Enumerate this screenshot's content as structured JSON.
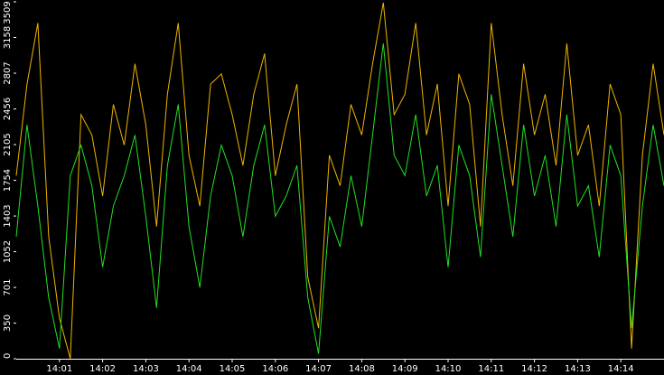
{
  "chart_data": {
    "type": "line",
    "x": [
      0,
      0.25,
      0.5,
      0.75,
      1,
      1.25,
      1.5,
      1.75,
      2,
      2.25,
      2.5,
      2.75,
      3,
      3.25,
      3.5,
      3.75,
      4,
      4.25,
      4.5,
      4.75,
      5,
      5.25,
      5.5,
      5.75,
      6,
      6.25,
      6.5,
      6.75,
      7,
      7.25,
      7.5,
      7.75,
      8,
      8.25,
      8.5,
      8.75,
      9,
      9.25,
      9.5,
      9.75,
      10,
      10.25,
      10.5,
      10.75,
      11,
      11.25,
      11.5,
      11.75,
      12,
      12.25,
      12.5,
      12.75,
      13,
      13.25,
      13.5,
      13.75,
      14,
      14.25,
      14.5,
      14.75,
      15
    ],
    "series": [
      {
        "color": "#f0b400",
        "values": [
          1800,
          2700,
          3300,
          1200,
          400,
          0,
          2400,
          2200,
          1600,
          2500,
          2100,
          2900,
          2300,
          1300,
          2600,
          3300,
          2000,
          1500,
          2700,
          2800,
          2400,
          1900,
          2600,
          3000,
          1800,
          2300,
          2700,
          800,
          300,
          2000,
          1700,
          2500,
          2200,
          2900,
          3500,
          2400,
          2600,
          3300,
          2200,
          2700,
          1500,
          2800,
          2500,
          1300,
          3300,
          2400,
          1700,
          2900,
          2200,
          2600,
          1900,
          3100,
          2000,
          2300,
          1500,
          2700,
          2400,
          100,
          2000,
          2900,
          2200
        ]
      },
      {
        "color": "#22e022",
        "values": [
          1200,
          2300,
          1500,
          600,
          100,
          1800,
          2100,
          1700,
          900,
          1500,
          1800,
          2200,
          1400,
          500,
          1900,
          2500,
          1300,
          700,
          1600,
          2100,
          1800,
          1200,
          1900,
          2300,
          1400,
          1600,
          1900,
          600,
          50,
          1400,
          1100,
          1800,
          1300,
          2200,
          3100,
          2000,
          1800,
          2400,
          1600,
          1900,
          900,
          2100,
          1800,
          1000,
          2600,
          1900,
          1200,
          2300,
          1600,
          2000,
          1300,
          2400,
          1500,
          1700,
          1000,
          2100,
          1800,
          300,
          1500,
          2300,
          1700
        ]
      }
    ],
    "xlim": [
      0,
      15
    ],
    "xticks": [
      {
        "value": 1,
        "label": "14:01"
      },
      {
        "value": 2,
        "label": "14:02"
      },
      {
        "value": 3,
        "label": "14:03"
      },
      {
        "value": 4,
        "label": "14:04"
      },
      {
        "value": 5,
        "label": "14:05"
      },
      {
        "value": 6,
        "label": "14:06"
      },
      {
        "value": 7,
        "label": "14:07"
      },
      {
        "value": 8,
        "label": "14:08"
      },
      {
        "value": 9,
        "label": "14:09"
      },
      {
        "value": 10,
        "label": "14:10"
      },
      {
        "value": 11,
        "label": "14:11"
      },
      {
        "value": 12,
        "label": "14:12"
      },
      {
        "value": 13,
        "label": "14:13"
      },
      {
        "value": 14,
        "label": "14:14"
      }
    ],
    "ylim": [
      0,
      3509
    ],
    "yticks": [
      0,
      350,
      701,
      1052,
      1403,
      1754,
      2105,
      2456,
      2807,
      3158,
      3509
    ]
  }
}
